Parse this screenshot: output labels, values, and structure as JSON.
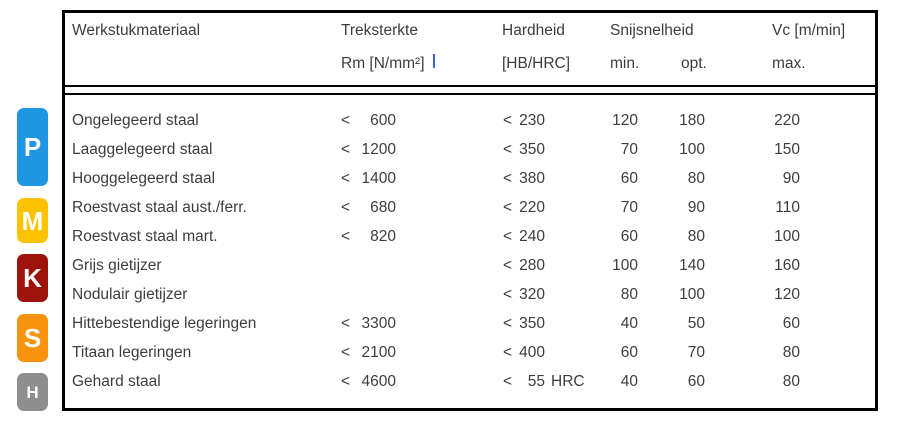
{
  "page": {
    "background": "#ffffff",
    "text_color": "#3d3d3d",
    "border_color": "#000000",
    "caret_color": "#3a64c8"
  },
  "iso_badges": [
    {
      "letter": "P",
      "color": "#1e96e1"
    },
    {
      "letter": "M",
      "color": "#fdc300"
    },
    {
      "letter": "K",
      "color": "#9d1309"
    },
    {
      "letter": "S",
      "color": "#f7930d"
    },
    {
      "letter": "H",
      "color": "#8e8e8e"
    }
  ],
  "header": {
    "material": "Werkstukmateriaal",
    "tensile_line1": "Treksterkte",
    "tensile_line2": "Rm [N/mm²]",
    "hardness_line1": "Hardheid",
    "hardness_line2": "[HB/HRC]",
    "speed_line1": "Snijsnelheid",
    "speed_min": "min.",
    "speed_opt": "opt.",
    "vc_line1": "Vc [m/min]",
    "vc_line2": "max."
  },
  "rows": [
    {
      "material": "Ongelegeerd staal",
      "rm_lt": "<",
      "rm": "600",
      "hb_lt": "<",
      "hb": "230",
      "hb_suffix": "",
      "vmin": "120",
      "vopt": "180",
      "vmax": "220"
    },
    {
      "material": "Laaggelegeerd staal",
      "rm_lt": "<",
      "rm": "1200",
      "hb_lt": "<",
      "hb": "350",
      "hb_suffix": "",
      "vmin": "70",
      "vopt": "100",
      "vmax": "150"
    },
    {
      "material": "Hooggelegeerd staal",
      "rm_lt": "<",
      "rm": "1400",
      "hb_lt": "<",
      "hb": "380",
      "hb_suffix": "",
      "vmin": "60",
      "vopt": "80",
      "vmax": "90"
    },
    {
      "material": "Roestvast staal aust./ferr.",
      "rm_lt": "<",
      "rm": "680",
      "hb_lt": "<",
      "hb": "220",
      "hb_suffix": "",
      "vmin": "70",
      "vopt": "90",
      "vmax": "110"
    },
    {
      "material": "Roestvast staal mart.",
      "rm_lt": "<",
      "rm": "820",
      "hb_lt": "<",
      "hb": "240",
      "hb_suffix": "",
      "vmin": "60",
      "vopt": "80",
      "vmax": "100"
    },
    {
      "material": "Grijs gietijzer",
      "rm_lt": "",
      "rm": "",
      "hb_lt": "<",
      "hb": "280",
      "hb_suffix": "",
      "vmin": "100",
      "vopt": "140",
      "vmax": "160"
    },
    {
      "material": "Nodulair gietijzer",
      "rm_lt": "",
      "rm": "",
      "hb_lt": "<",
      "hb": "320",
      "hb_suffix": "",
      "vmin": "80",
      "vopt": "100",
      "vmax": "120"
    },
    {
      "material": "Hittebestendige legeringen",
      "rm_lt": "<",
      "rm": "3300",
      "hb_lt": "<",
      "hb": "350",
      "hb_suffix": "",
      "vmin": "40",
      "vopt": "50",
      "vmax": "60"
    },
    {
      "material": "Titaan legeringen",
      "rm_lt": "<",
      "rm": "2100",
      "hb_lt": "<",
      "hb": "400",
      "hb_suffix": "",
      "vmin": "60",
      "vopt": "70",
      "vmax": "80"
    },
    {
      "material": "Gehard staal",
      "rm_lt": "<",
      "rm": "4600",
      "hb_lt": "<",
      "hb": "55",
      "hb_suffix": "HRC",
      "vmin": "40",
      "vopt": "60",
      "vmax": "80"
    }
  ]
}
